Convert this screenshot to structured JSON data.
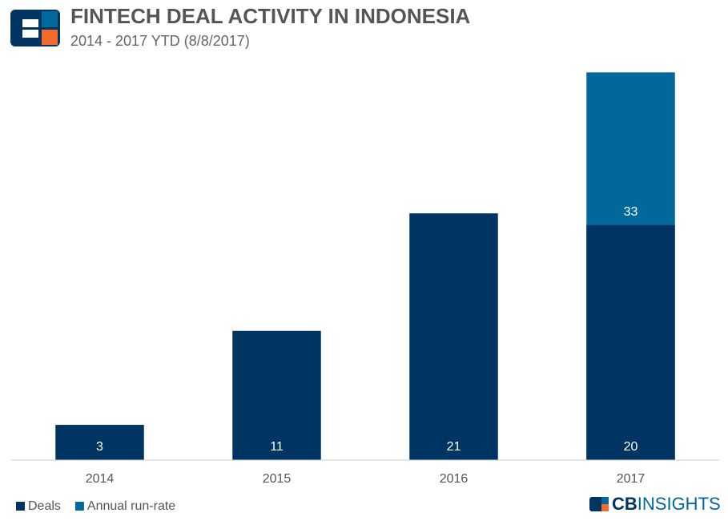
{
  "chart_data": {
    "type": "bar",
    "barmode": "overlay",
    "title": "FINTECH DEAL ACTIVITY IN INDONESIA",
    "subtitle": "2014 - 2017 YTD (8/8/2017)",
    "categories": [
      "2014",
      "2015",
      "2016",
      "2017"
    ],
    "series": [
      {
        "name": "Annual run-rate",
        "color": "#00689b",
        "values": [
          null,
          null,
          null,
          33
        ]
      },
      {
        "name": "Deals",
        "color": "#003462",
        "values": [
          3,
          11,
          21,
          20
        ]
      }
    ],
    "ylim": [
      0,
      35
    ],
    "legend": "bottom-left",
    "brand": [
      "CB",
      "INSIGHTS"
    ]
  }
}
